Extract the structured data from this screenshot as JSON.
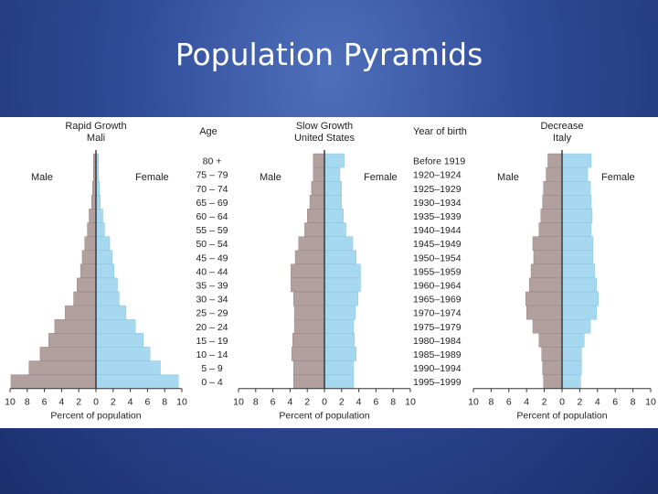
{
  "slide": {
    "title": "Population Pyramids"
  },
  "column_headers": {
    "age": "Age",
    "year_of_birth": "Year of birth"
  },
  "age_groups": [
    "80 +",
    "75 – 79",
    "70 – 74",
    "65 – 69",
    "60 – 64",
    "55 – 59",
    "50 – 54",
    "45 – 49",
    "40 – 44",
    "35 – 39",
    "30 – 34",
    "25 – 29",
    "20 – 24",
    "15 – 19",
    "10 – 14",
    "5 – 9",
    "0 – 4"
  ],
  "birth_years": [
    "Before 1919",
    "1920–1924",
    "1925–1929",
    "1930–1934",
    "1935–1939",
    "1940–1944",
    "1945–1949",
    "1950–1954",
    "1955–1959",
    "1960–1964",
    "1965–1969",
    "1970–1974",
    "1975–1979",
    "1980–1984",
    "1985–1989",
    "1990–1994",
    "1995–1999"
  ],
  "colors": {
    "male": "#b2a09f",
    "female": "#a6d9f0",
    "outline": "#555555",
    "axis": "#333333"
  },
  "chart_data": [
    {
      "type": "bar",
      "orientation": "horizontal-pyramid",
      "title": "Rapid Growth",
      "subtitle": "Mali",
      "male_label": "Male",
      "female_label": "Female",
      "xlabel": "Percent of population",
      "xlim": [
        -10,
        10
      ],
      "x_ticks": [
        "10",
        "8",
        "6",
        "4",
        "2",
        "0",
        "2",
        "4",
        "6",
        "8",
        "10"
      ],
      "categories": [
        "80 +",
        "75 – 79",
        "70 – 74",
        "65 – 69",
        "60 – 64",
        "55 – 59",
        "50 – 54",
        "45 – 49",
        "40 – 44",
        "35 – 39",
        "30 – 34",
        "25 – 29",
        "20 – 24",
        "15 – 19",
        "10 – 14",
        "5 – 9",
        "0 – 4"
      ],
      "series": [
        {
          "name": "Male",
          "values": [
            0.3,
            0.3,
            0.4,
            0.5,
            0.8,
            1.0,
            1.3,
            1.6,
            1.8,
            2.2,
            2.6,
            3.6,
            4.8,
            5.5,
            6.5,
            7.8,
            9.9
          ]
        },
        {
          "name": "Female",
          "values": [
            0.3,
            0.3,
            0.4,
            0.5,
            0.8,
            1.0,
            1.6,
            1.9,
            2.1,
            2.5,
            2.7,
            3.5,
            4.6,
            5.5,
            6.3,
            7.5,
            9.6
          ]
        }
      ]
    },
    {
      "type": "bar",
      "orientation": "horizontal-pyramid",
      "title": "Slow Growth",
      "subtitle": "United States",
      "male_label": "Male",
      "female_label": "Female",
      "xlabel": "Percent of population",
      "xlim": [
        -10,
        10
      ],
      "x_ticks": [
        "10",
        "8",
        "6",
        "4",
        "2",
        "0",
        "2",
        "4",
        "6",
        "8",
        "10"
      ],
      "categories": [
        "80 +",
        "75 – 79",
        "70 – 74",
        "65 – 69",
        "60 – 64",
        "55 – 59",
        "50 – 54",
        "45 – 49",
        "40 – 44",
        "35 – 39",
        "30 – 34",
        "25 – 29",
        "20 – 24",
        "15 – 19",
        "10 – 14",
        "5 – 9",
        "0 – 4"
      ],
      "series": [
        {
          "name": "Male",
          "values": [
            1.3,
            1.3,
            1.5,
            1.7,
            2.0,
            2.3,
            3.0,
            3.4,
            3.9,
            3.9,
            3.6,
            3.5,
            3.5,
            3.7,
            3.8,
            3.6,
            3.6
          ]
        },
        {
          "name": "Female",
          "values": [
            2.3,
            1.8,
            2.0,
            2.0,
            2.2,
            2.5,
            3.3,
            3.7,
            4.2,
            4.2,
            3.9,
            3.6,
            3.4,
            3.5,
            3.7,
            3.4,
            3.4
          ]
        }
      ]
    },
    {
      "type": "bar",
      "orientation": "horizontal-pyramid",
      "title": "Decrease",
      "subtitle": "Italy",
      "male_label": "Male",
      "female_label": "Female",
      "xlabel": "Percent of population",
      "xlim": [
        -10,
        10
      ],
      "x_ticks": [
        "10",
        "8",
        "6",
        "4",
        "2",
        "0",
        "2",
        "4",
        "6",
        "8",
        "10"
      ],
      "categories": [
        "80 +",
        "75 – 79",
        "70 – 74",
        "65 – 69",
        "60 – 64",
        "55 – 59",
        "50 – 54",
        "45 – 49",
        "40 – 44",
        "35 – 39",
        "30 – 34",
        "25 – 29",
        "20 – 24",
        "15 – 19",
        "10 – 14",
        "5 – 9",
        "0 – 4"
      ],
      "series": [
        {
          "name": "Male",
          "values": [
            1.6,
            1.8,
            2.1,
            2.2,
            2.4,
            2.6,
            3.3,
            3.2,
            3.5,
            3.7,
            4.1,
            4.0,
            3.3,
            2.6,
            2.3,
            2.2,
            2.1
          ]
        },
        {
          "name": "Female",
          "values": [
            3.3,
            2.9,
            3.2,
            3.3,
            3.4,
            3.3,
            3.5,
            3.5,
            3.7,
            3.9,
            4.1,
            3.9,
            3.2,
            2.5,
            2.2,
            2.2,
            2.1
          ]
        }
      ]
    }
  ]
}
